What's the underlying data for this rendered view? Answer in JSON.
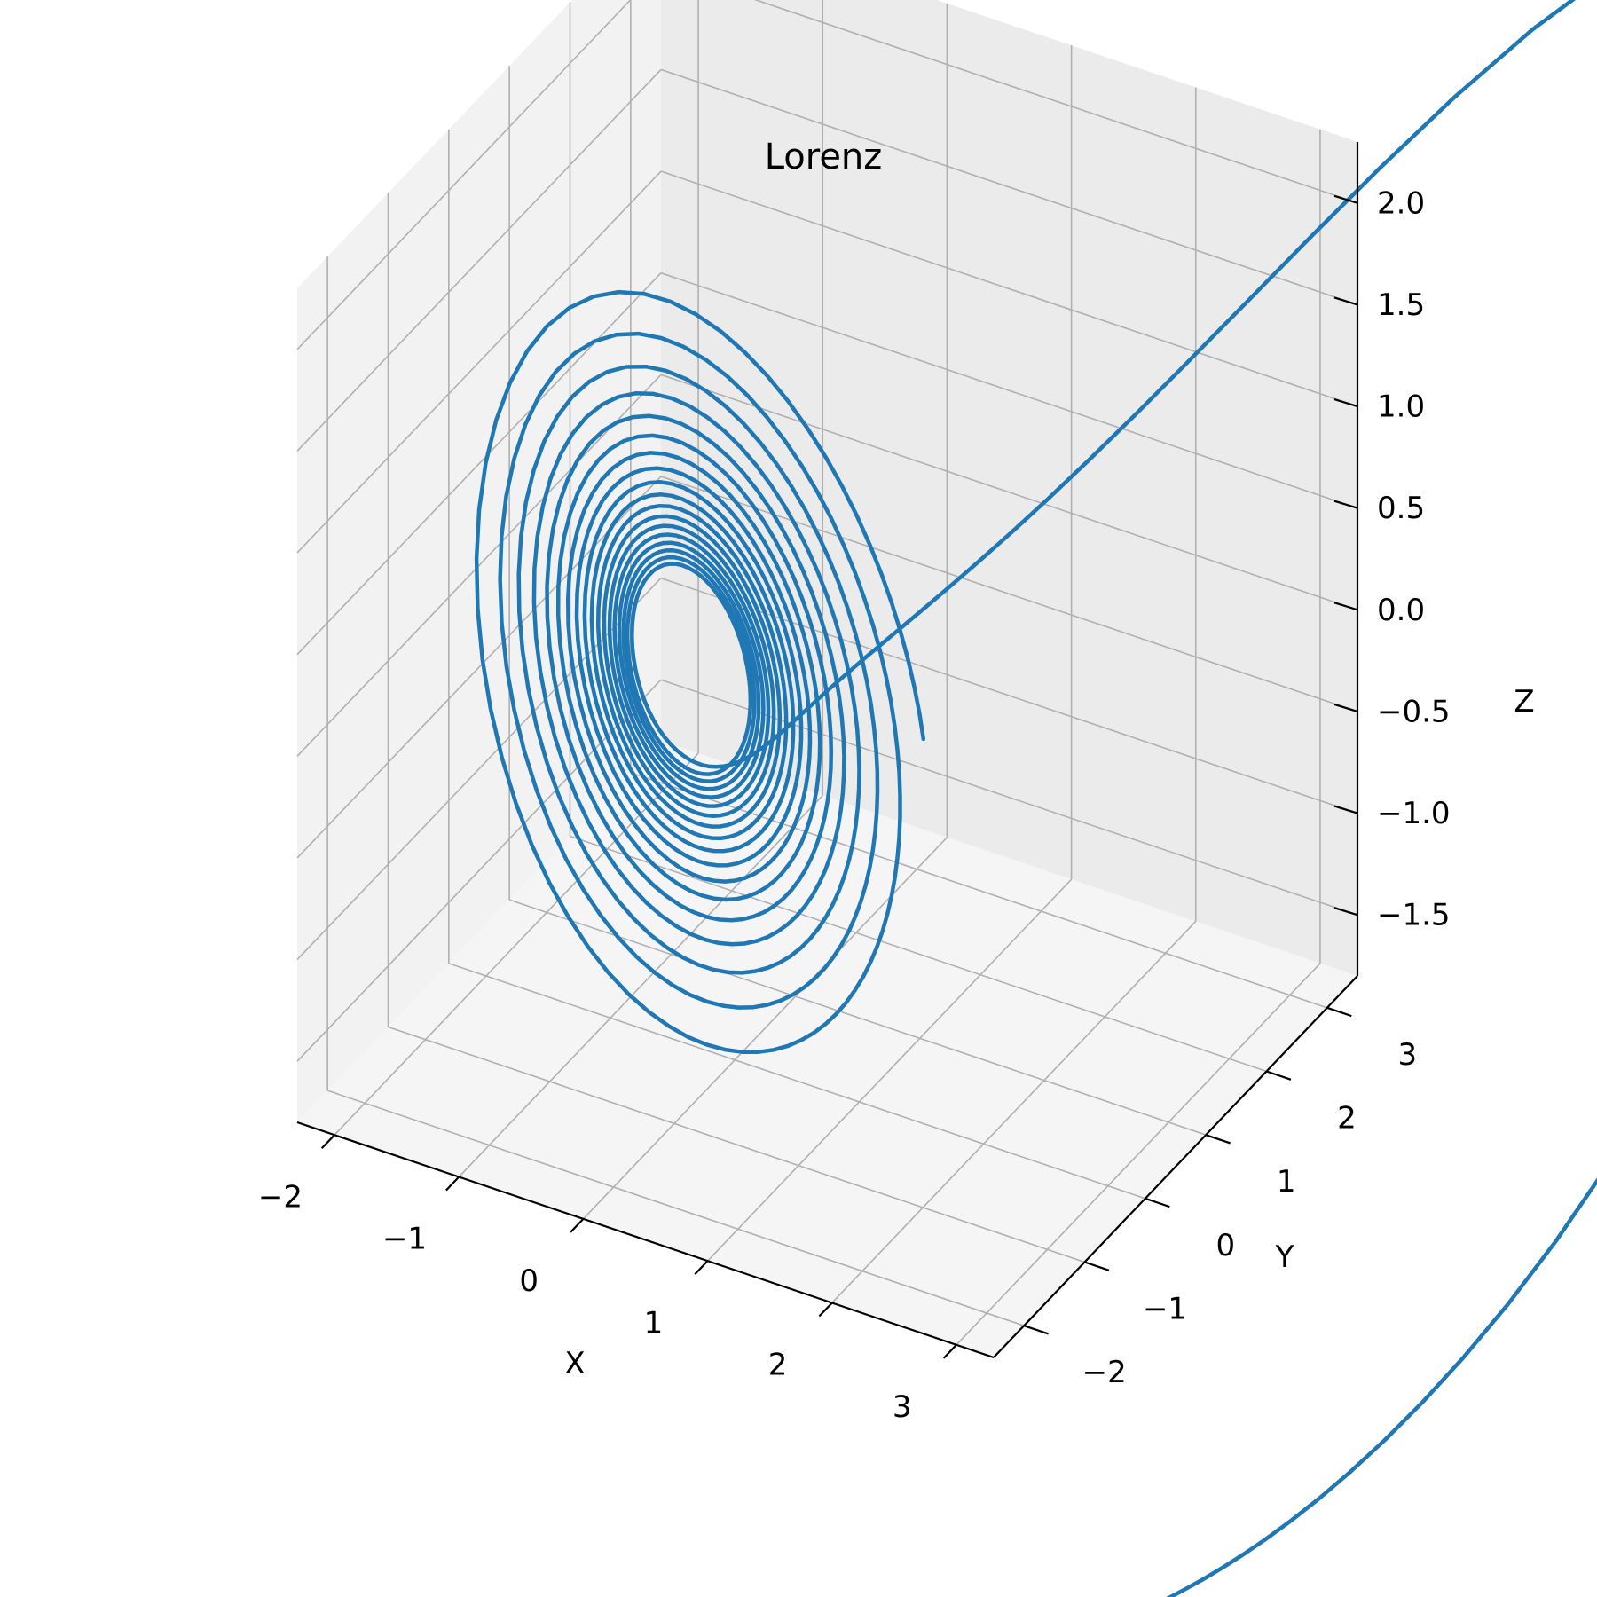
{
  "chart_data": {
    "type": "line",
    "projection": "3d",
    "title": "Lorenz",
    "xlabel": "X",
    "ylabel": "Y",
    "zlabel": "Z",
    "xlim": [
      -2.3,
      3.3
    ],
    "ylim": [
      -2.5,
      3.5
    ],
    "zlim": [
      -1.8,
      2.3
    ],
    "xticks": [
      -2,
      -1,
      0,
      1,
      2,
      3
    ],
    "yticks": [
      -2,
      -1,
      0,
      1,
      2,
      3
    ],
    "zticks": [
      -1.5,
      -1.0,
      -0.5,
      0.0,
      0.5,
      1.0,
      1.5,
      2.0
    ],
    "xtick_labels": [
      "−2",
      "−1",
      "0",
      "1",
      "2",
      "3"
    ],
    "ytick_labels": [
      "−2",
      "−1",
      "0",
      "1",
      "2",
      "3"
    ],
    "ztick_labels": [
      "−1.5",
      "−1.0",
      "−0.5",
      "0.0",
      "0.5",
      "1.0",
      "1.5",
      "2.0"
    ],
    "grid": true,
    "series": [
      {
        "color": "#1f77b4",
        "description": "Lorenz attractor trajectory (normalized x, y, z)"
      }
    ],
    "line_color": "#1f77b4",
    "pane_colors": [
      "#f2f2f2",
      "#ebebeb",
      "#f5f5f5"
    ]
  }
}
